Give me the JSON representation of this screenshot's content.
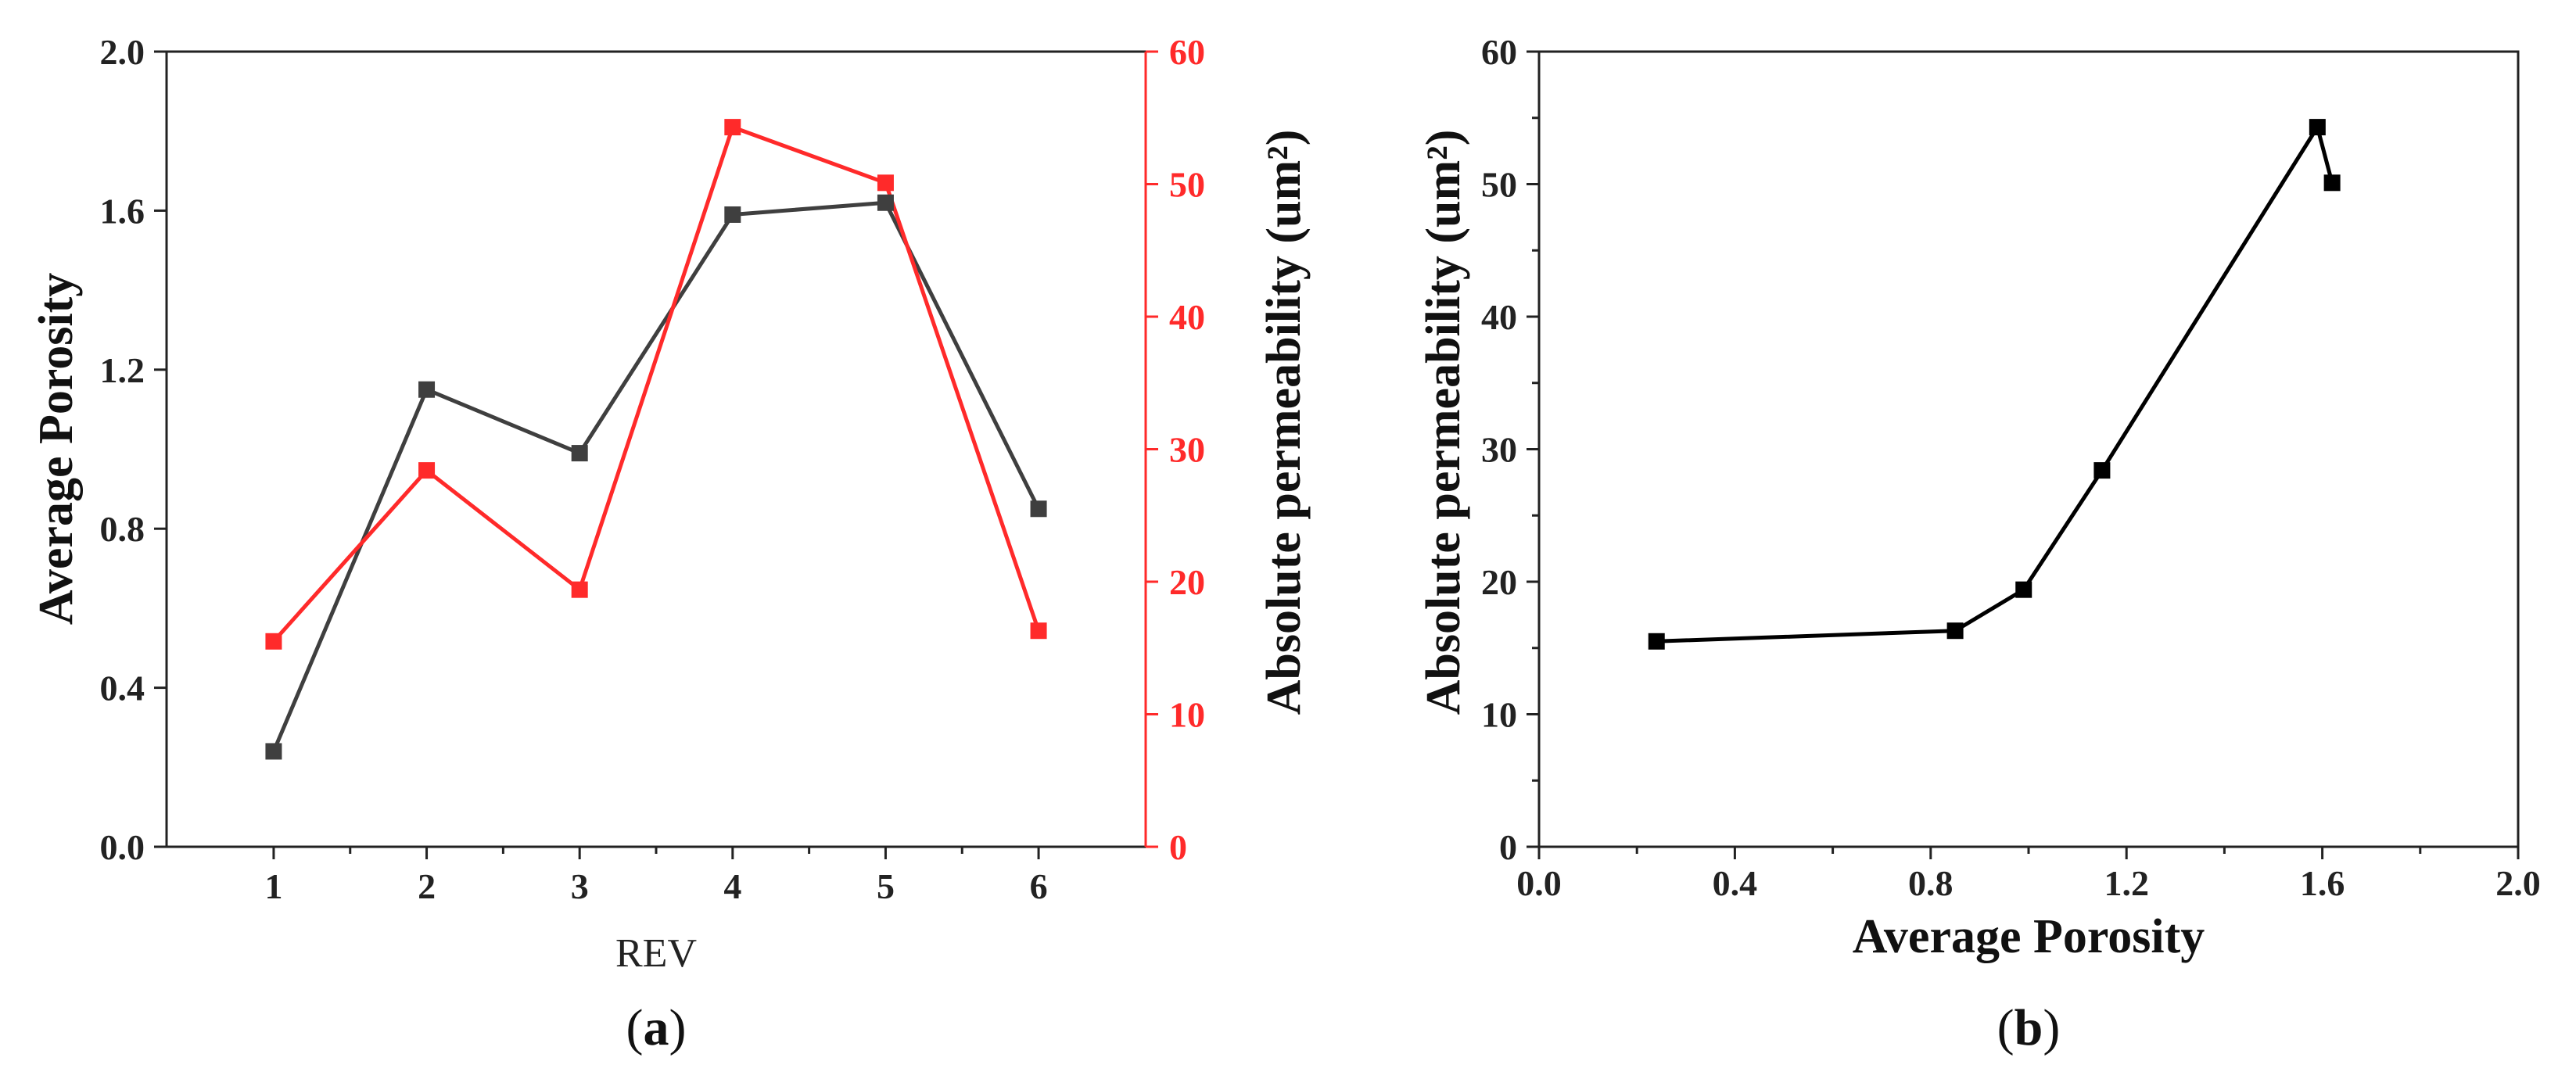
{
  "colors": {
    "porosity_series": "#3f3f3f",
    "permeability_series": "#ff2a2a",
    "axis": "#222222",
    "right_axis_a": "#ff2a2a"
  },
  "panel_labels": [
    {
      "open": "(",
      "letter": "a",
      "close": ")"
    },
    {
      "open": "(",
      "letter": "b",
      "close": ")"
    }
  ],
  "chart_data": [
    {
      "type": "line",
      "title": "",
      "xlabel": "REV",
      "ylabel": "Average Porosity",
      "y2label": "Absolute permeability (um²)",
      "x": [
        1,
        2,
        3,
        4,
        5,
        6
      ],
      "xlim": [
        0.3,
        6.7
      ],
      "ylim": [
        0,
        2.0
      ],
      "y2lim": [
        0,
        60
      ],
      "xticks": [
        "1",
        "2",
        "3",
        "4",
        "5",
        "6"
      ],
      "yticks": [
        "0.0",
        "0.4",
        "0.8",
        "1.2",
        "1.6",
        "2.0"
      ],
      "y2ticks": [
        "0",
        "10",
        "20",
        "30",
        "40",
        "50",
        "60"
      ],
      "grid": false,
      "series": [
        {
          "axis": "left",
          "color": "#3f3f3f",
          "marker": "square",
          "values": [
            0.24,
            1.15,
            0.99,
            1.59,
            1.62,
            0.85
          ]
        },
        {
          "axis": "right",
          "color": "#ff2a2a",
          "marker": "square",
          "values": [
            15.5,
            28.4,
            19.4,
            54.3,
            50.1,
            16.3
          ]
        }
      ]
    },
    {
      "type": "line",
      "title": "",
      "xlabel": "Average Porosity",
      "ylabel": "Absolute permeability (um²)",
      "xlim": [
        0,
        2.0
      ],
      "ylim": [
        0,
        60
      ],
      "xticks": [
        "0.0",
        "0.4",
        "0.8",
        "1.2",
        "1.6",
        "2.0"
      ],
      "yticks": [
        "0",
        "10",
        "20",
        "30",
        "40",
        "50",
        "60"
      ],
      "grid": false,
      "series": [
        {
          "color": "#000000",
          "marker": "square",
          "x": [
            0.24,
            0.85,
            0.99,
            1.15,
            1.59,
            1.62
          ],
          "y": [
            15.5,
            16.3,
            19.4,
            28.4,
            54.3,
            50.1
          ]
        }
      ]
    }
  ]
}
